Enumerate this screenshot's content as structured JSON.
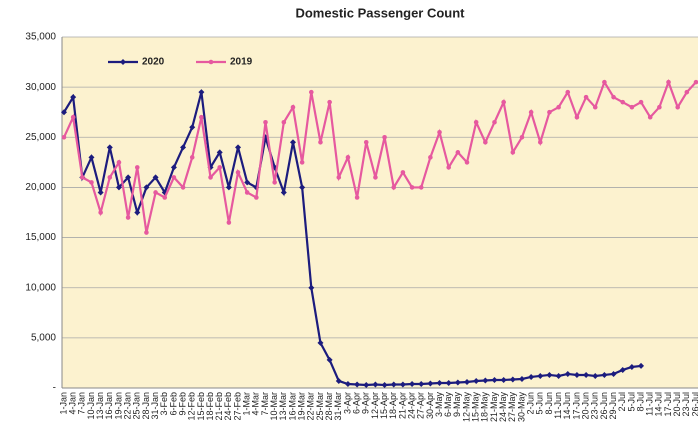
{
  "chart_data": {
    "type": "line",
    "title": "Domestic Passenger Count",
    "categories": [
      "1-Jan",
      "4-Jan",
      "7-Jan",
      "10-Jan",
      "13-Jan",
      "16-Jan",
      "19-Jan",
      "22-Jan",
      "25-Jan",
      "28-Jan",
      "31-Jan",
      "3-Feb",
      "6-Feb",
      "9-Feb",
      "12-Feb",
      "15-Feb",
      "18-Feb",
      "21-Feb",
      "24-Feb",
      "27-Feb",
      "1-Mar",
      "4-Mar",
      "7-Mar",
      "10-Mar",
      "13-Mar",
      "16-Mar",
      "19-Mar",
      "22-Mar",
      "25-Mar",
      "28-Mar",
      "31-Mar",
      "3-Apr",
      "6-Apr",
      "9-Apr",
      "12-Apr",
      "15-Apr",
      "18-Apr",
      "21-Apr",
      "24-Apr",
      "27-Apr",
      "30-Apr",
      "3-May",
      "6-May",
      "9-May",
      "12-May",
      "15-May",
      "18-May",
      "21-May",
      "24-May",
      "27-May",
      "30-May",
      "2-Jun",
      "5-Jun",
      "8-Jun",
      "11-Jun",
      "14-Jun",
      "17-Jun",
      "20-Jun",
      "23-Jun",
      "26-Jun",
      "29-Jun",
      "2-Jul",
      "5-Jul",
      "8-Jul",
      "11-Jul",
      "14-Jul",
      "17-Jul",
      "20-Jul",
      "23-Jul",
      "26-Jul"
    ],
    "series": [
      {
        "name": "2020",
        "color": "#1c1c7e",
        "marker": "diamond",
        "values": [
          27500,
          29000,
          21000,
          23000,
          19500,
          24000,
          20000,
          21000,
          17500,
          20000,
          21000,
          19500,
          22000,
          24000,
          26000,
          29500,
          22000,
          23500,
          20000,
          24000,
          20500,
          20000,
          25000,
          22000,
          19500,
          24500,
          20000,
          10000,
          4500,
          2800,
          700,
          400,
          350,
          300,
          350,
          300,
          350,
          350,
          400,
          400,
          450,
          500,
          500,
          550,
          600,
          700,
          750,
          800,
          800,
          850,
          900,
          1100,
          1200,
          1300,
          1200,
          1400,
          1300,
          1300,
          1200,
          1300,
          1400,
          1800,
          2100,
          2200,
          null,
          null,
          null,
          null,
          null,
          null
        ]
      },
      {
        "name": "2019",
        "color": "#e6599f",
        "marker": "circle",
        "values": [
          25000,
          27000,
          21000,
          20500,
          17500,
          21000,
          22500,
          17000,
          22000,
          15500,
          19500,
          19000,
          21000,
          20000,
          23000,
          27000,
          21000,
          22000,
          16500,
          21500,
          19500,
          19000,
          26500,
          20500,
          26500,
          28000,
          22500,
          29500,
          24500,
          28500,
          21000,
          23000,
          19000,
          24500,
          21000,
          25000,
          20000,
          21500,
          20000,
          20000,
          23000,
          25500,
          22000,
          23500,
          22500,
          26500,
          24500,
          26500,
          28500,
          23500,
          25000,
          27500,
          24500,
          27500,
          28000,
          29500,
          27000,
          29000,
          28000,
          30500,
          29000,
          28500,
          28000,
          28500,
          27000,
          28000,
          30500,
          28000,
          29500,
          30500
        ]
      }
    ],
    "ylim": [
      0,
      35000
    ],
    "yticks": [
      {
        "value": 0,
        "label": "-"
      },
      {
        "value": 5000,
        "label": "5,000"
      },
      {
        "value": 10000,
        "label": "10,000"
      },
      {
        "value": 15000,
        "label": "15,000"
      },
      {
        "value": 20000,
        "label": "20,000"
      },
      {
        "value": 25000,
        "label": "25,000"
      },
      {
        "value": 30000,
        "label": "30,000"
      },
      {
        "value": 35000,
        "label": "35,000"
      }
    ],
    "grid": true,
    "legend": "upper left"
  }
}
